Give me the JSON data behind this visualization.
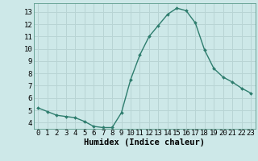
{
  "x": [
    0,
    1,
    2,
    3,
    4,
    5,
    6,
    7,
    8,
    9,
    10,
    11,
    12,
    13,
    14,
    15,
    16,
    17,
    18,
    19,
    20,
    21,
    22,
    23
  ],
  "y": [
    5.2,
    4.9,
    4.6,
    4.5,
    4.4,
    4.1,
    3.7,
    3.6,
    3.6,
    4.8,
    7.5,
    9.5,
    11.0,
    11.9,
    12.8,
    13.3,
    13.1,
    12.1,
    9.9,
    8.4,
    7.7,
    7.3,
    6.8,
    6.4
  ],
  "line_color": "#2e7d6e",
  "marker": "D",
  "marker_size": 2.0,
  "bg_color": "#cde8e8",
  "grid_color": "#b8d4d4",
  "xlabel": "Humidex (Indice chaleur)",
  "ylim": [
    3.5,
    13.7
  ],
  "xlim": [
    -0.5,
    23.5
  ],
  "yticks": [
    4,
    5,
    6,
    7,
    8,
    9,
    10,
    11,
    12,
    13
  ],
  "xticks": [
    0,
    1,
    2,
    3,
    4,
    5,
    6,
    7,
    8,
    9,
    10,
    11,
    12,
    13,
    14,
    15,
    16,
    17,
    18,
    19,
    20,
    21,
    22,
    23
  ],
  "tick_label_fontsize": 6.5,
  "xlabel_fontsize": 7.5,
  "line_width": 1.0,
  "spine_color": "#5a9a8a"
}
